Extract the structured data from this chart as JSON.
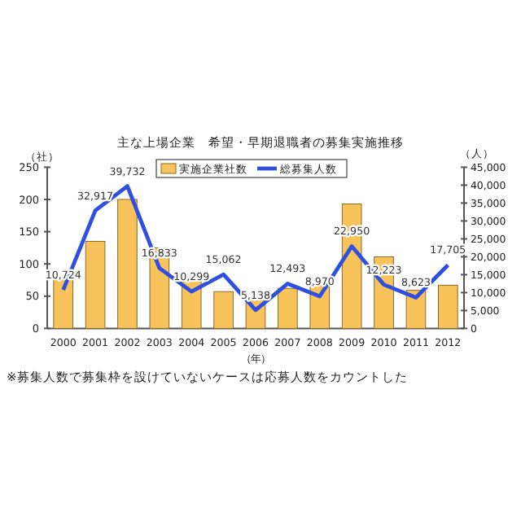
{
  "chart_data": {
    "type": "bar",
    "title": "主な上場企業　希望・早期退職者の募集実施推移",
    "xlabel": "（年）",
    "ylabel": "（社）",
    "y2label": "（人）",
    "annotations": [
      "※募集人数で募集枠を設けていないケースは応募人数をカウントした"
    ],
    "categories": [
      "2000",
      "2001",
      "2002",
      "2003",
      "2004",
      "2005",
      "2006",
      "2007",
      "2008",
      "2009",
      "2010",
      "2011",
      "2012"
    ],
    "series": [
      {
        "name": "実施企業社数",
        "color": "#f9c35c",
        "values": [
          80,
          135,
          200,
          125,
          73,
          57,
          48,
          62,
          70,
          193,
          111,
          59,
          67
        ]
      },
      {
        "name": "総募集人数",
        "type": "line",
        "axis": "y2",
        "color": "#2e4fe0",
        "values": [
          10724,
          32917,
          39732,
          16833,
          10299,
          15062,
          5138,
          12493,
          8970,
          22950,
          12223,
          8623,
          17705
        ],
        "value_labels": [
          "10,724",
          "32,917",
          "39,732",
          "16,833",
          "10,299",
          "15,062",
          "5,138",
          "12,493",
          "8,970",
          "22,950",
          "12,223",
          "8,623",
          "17,705"
        ]
      }
    ],
    "ylim": [
      0,
      250
    ],
    "yticks": [
      0,
      50,
      100,
      150,
      200,
      250
    ],
    "y2lim": [
      0,
      45000
    ],
    "y2ticks": [
      0,
      {
        "value": 5000,
        "label": "5,000"
      },
      {
        "value": 10000,
        "label": "10,000"
      },
      {
        "value": 15000,
        "label": "15,000"
      },
      {
        "value": 20000,
        "label": "20,000"
      },
      {
        "value": 25000,
        "label": "25,000"
      },
      {
        "value": 30000,
        "label": "30,000"
      },
      {
        "value": 35000,
        "label": "35,000"
      },
      {
        "value": 40000,
        "label": "40,000"
      },
      {
        "value": 45000,
        "label": "45,000"
      }
    ],
    "legend": "top",
    "marker": "none",
    "line_style": "solid",
    "grid": false
  }
}
